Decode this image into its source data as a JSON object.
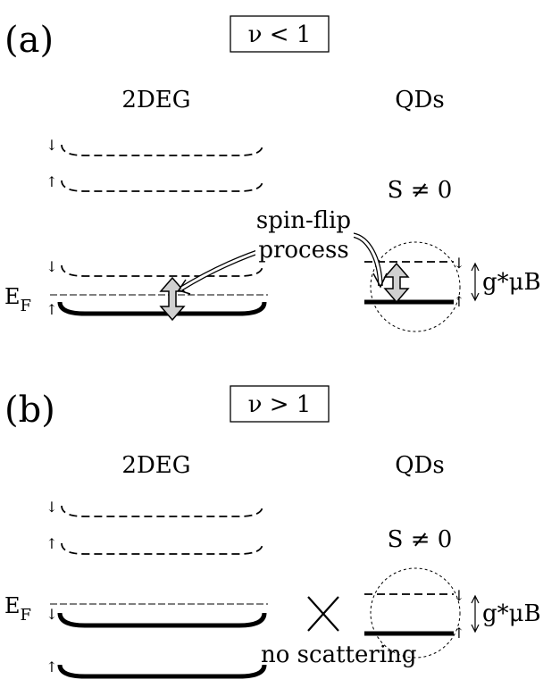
{
  "panel_a": {
    "label": "(a)",
    "condition": "ν < 1",
    "left_title": "2DEG",
    "right_title": "QDs",
    "spin_state": "S ≠ 0",
    "process_line1": "spin-flip",
    "process_line2": "process",
    "fermi_main": "E",
    "fermi_sub": "F",
    "zeeman": "g*μB",
    "spin_down": "↓",
    "spin_up": "↑"
  },
  "panel_b": {
    "label": "(b)",
    "condition": "ν > 1",
    "left_title": "2DEG",
    "right_title": "QDs",
    "spin_state": "S ≠ 0",
    "fermi_main": "E",
    "fermi_sub": "F",
    "zeeman": "g*μB",
    "no_scatter": "no scattering",
    "spin_down": "↓",
    "spin_up": "↑"
  }
}
